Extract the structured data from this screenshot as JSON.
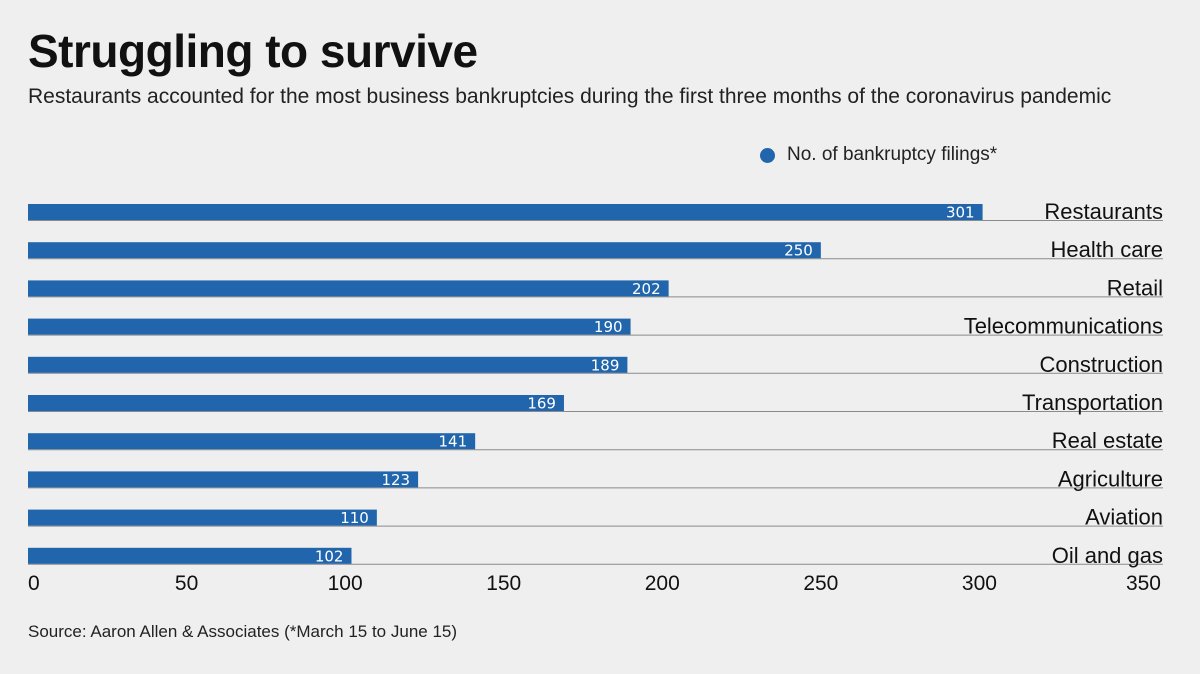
{
  "title": "Struggling to survive",
  "subtitle": "Restaurants accounted for the most business bankruptcies during the first three months of the coronavirus pandemic",
  "legend": {
    "label": "No. of bankruptcy filings*"
  },
  "source": "Source: Aaron Allen & Associates (*March 15 to June 15)",
  "colors": {
    "bar": "#2166ac",
    "background": "#efefef"
  },
  "chart_data": {
    "type": "bar",
    "orientation": "horizontal",
    "categories": [
      "Restaurants",
      "Health care",
      "Retail",
      "Telecommunications",
      "Construction",
      "Transportation",
      "Real estate",
      "Agriculture",
      "Aviation",
      "Oil and gas"
    ],
    "series": [
      {
        "name": "No. of bankruptcy filings*",
        "values": [
          301,
          250,
          202,
          190,
          189,
          169,
          141,
          123,
          110,
          102
        ]
      }
    ],
    "xlim": [
      0,
      350
    ],
    "xticks": [
      0,
      50,
      100,
      150,
      200,
      250,
      300,
      350
    ],
    "grid": false,
    "legend_position": "top-right"
  }
}
